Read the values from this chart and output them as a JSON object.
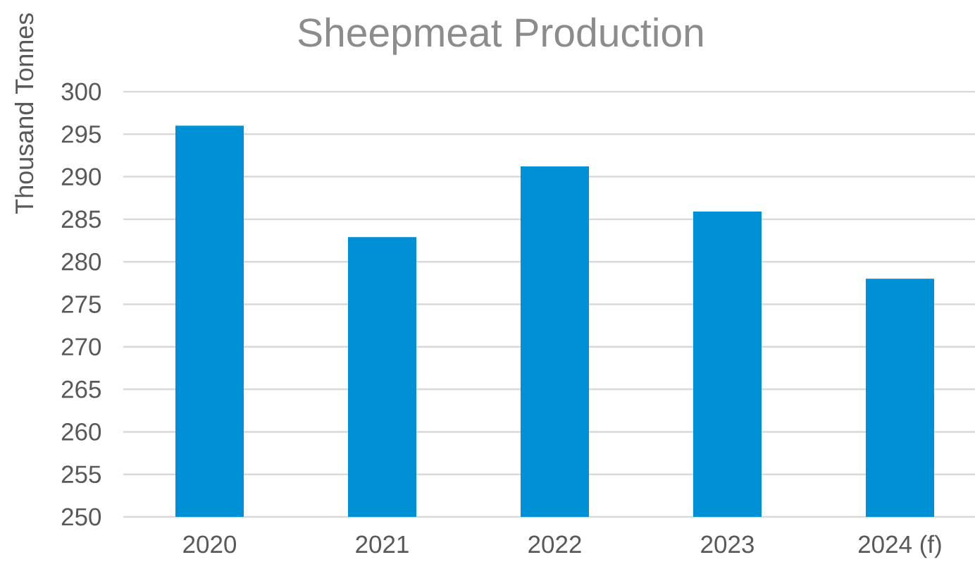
{
  "chart_data": {
    "type": "bar",
    "title": "Sheepmeat Production",
    "ylabel": "Thousand Tonnes",
    "categories": [
      "2020",
      "2021",
      "2022",
      "2023",
      "2024 (f)"
    ],
    "values": [
      296.0,
      282.9,
      291.2,
      285.9,
      278.0
    ],
    "color": "#0090d5",
    "ylim": [
      250,
      300
    ],
    "yticks": [
      250,
      255,
      260,
      265,
      270,
      275,
      280,
      285,
      290,
      295,
      300
    ],
    "grid": "y"
  }
}
